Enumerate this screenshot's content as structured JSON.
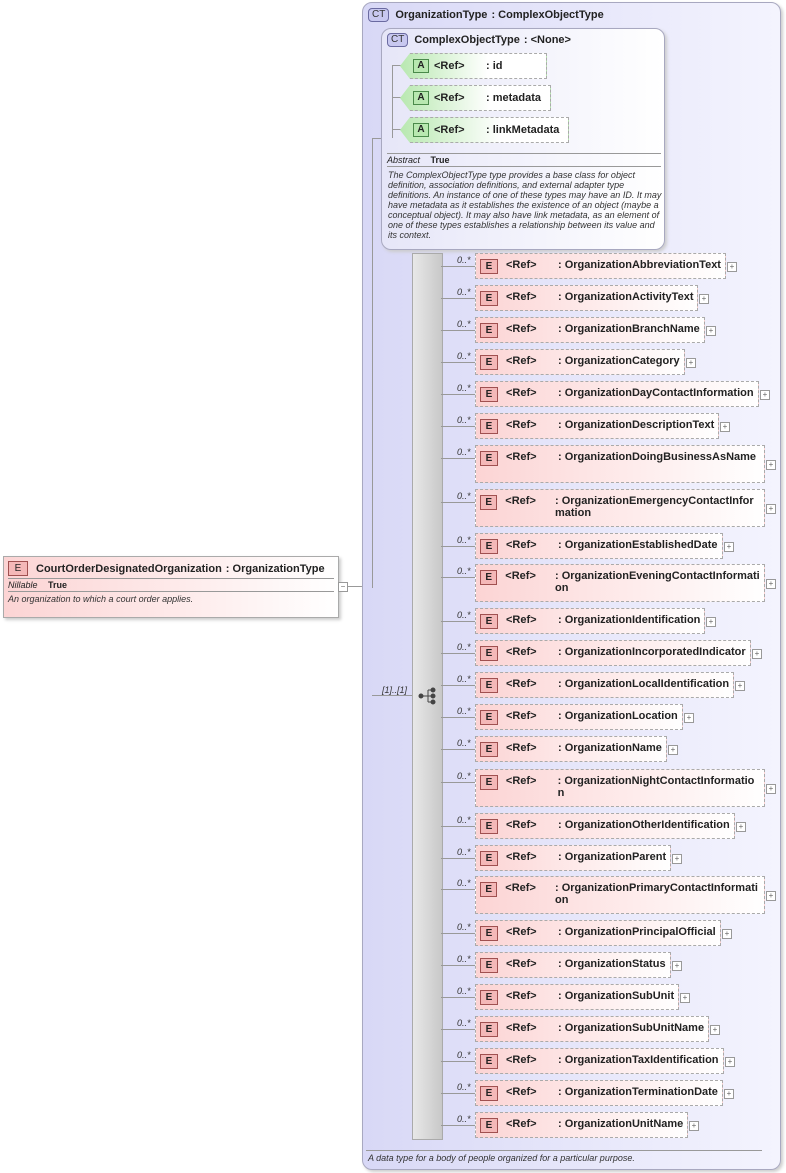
{
  "root": {
    "badge": "E",
    "name": "CourtOrderDesignatedOrganization",
    "type": ": OrganizationType",
    "prop_label": "Nillable",
    "prop_value": "True",
    "doc": "An organization to which a court order applies."
  },
  "org_type": {
    "badge": "CT",
    "name": "OrganizationType",
    "base": ": ComplexObjectType",
    "doc": "A data type for a body of people organized for a particular purpose."
  },
  "cot": {
    "badge": "CT",
    "name": "ComplexObjectType",
    "base": ": <None>",
    "prop_label": "Abstract",
    "prop_value": "True",
    "doc": "The ComplexObjectType type provides a base class for object definition, association definitions, and external adapter type definitions. An instance of one of these types may have an ID. It may have metadata as it establishes the existence of an object (maybe a conceptual object). It may also have link metadata, as an element of one of these types establishes a relationship between its value and its context.",
    "attributes": [
      {
        "badge": "A",
        "ref": "<Ref>",
        "name": ": id"
      },
      {
        "badge": "A",
        "ref": "<Ref>",
        "name": ": metadata"
      },
      {
        "badge": "A",
        "ref": "<Ref>",
        "name": ": linkMetadata"
      }
    ]
  },
  "sequence": {
    "multiplicity": "[1]..[1]"
  },
  "elements": [
    {
      "m": "0..*",
      "badge": "E",
      "ref": "<Ref>",
      "name": ": OrganizationAbbreviationText"
    },
    {
      "m": "0..*",
      "badge": "E",
      "ref": "<Ref>",
      "name": ": OrganizationActivityText"
    },
    {
      "m": "0..*",
      "badge": "E",
      "ref": "<Ref>",
      "name": ": OrganizationBranchName"
    },
    {
      "m": "0..*",
      "badge": "E",
      "ref": "<Ref>",
      "name": ": OrganizationCategory"
    },
    {
      "m": "0..*",
      "badge": "E",
      "ref": "<Ref>",
      "name": ": OrganizationDayContactInformation"
    },
    {
      "m": "0..*",
      "badge": "E",
      "ref": "<Ref>",
      "name": ": OrganizationDescriptionText"
    },
    {
      "m": "0..*",
      "badge": "E",
      "ref": "<Ref>",
      "name": ": OrganizationDoingBusinessAsName"
    },
    {
      "m": "0..*",
      "badge": "E",
      "ref": "<Ref>",
      "name": ": OrganizationEmergencyContactInformation"
    },
    {
      "m": "0..*",
      "badge": "E",
      "ref": "<Ref>",
      "name": ": OrganizationEstablishedDate"
    },
    {
      "m": "0..*",
      "badge": "E",
      "ref": "<Ref>",
      "name": ": OrganizationEveningContactInformation"
    },
    {
      "m": "0..*",
      "badge": "E",
      "ref": "<Ref>",
      "name": ": OrganizationIdentification"
    },
    {
      "m": "0..*",
      "badge": "E",
      "ref": "<Ref>",
      "name": ": OrganizationIncorporatedIndicator"
    },
    {
      "m": "0..*",
      "badge": "E",
      "ref": "<Ref>",
      "name": ": OrganizationLocalIdentification"
    },
    {
      "m": "0..*",
      "badge": "E",
      "ref": "<Ref>",
      "name": ": OrganizationLocation"
    },
    {
      "m": "0..*",
      "badge": "E",
      "ref": "<Ref>",
      "name": ": OrganizationName"
    },
    {
      "m": "0..*",
      "badge": "E",
      "ref": "<Ref>",
      "name": ": OrganizationNightContactInformation"
    },
    {
      "m": "0..*",
      "badge": "E",
      "ref": "<Ref>",
      "name": ": OrganizationOtherIdentification"
    },
    {
      "m": "0..*",
      "badge": "E",
      "ref": "<Ref>",
      "name": ": OrganizationParent"
    },
    {
      "m": "0..*",
      "badge": "E",
      "ref": "<Ref>",
      "name": ": OrganizationPrimaryContactInformation"
    },
    {
      "m": "0..*",
      "badge": "E",
      "ref": "<Ref>",
      "name": ": OrganizationPrincipalOfficial"
    },
    {
      "m": "0..*",
      "badge": "E",
      "ref": "<Ref>",
      "name": ": OrganizationStatus"
    },
    {
      "m": "0..*",
      "badge": "E",
      "ref": "<Ref>",
      "name": ": OrganizationSubUnit"
    },
    {
      "m": "0..*",
      "badge": "E",
      "ref": "<Ref>",
      "name": ": OrganizationSubUnitName"
    },
    {
      "m": "0..*",
      "badge": "E",
      "ref": "<Ref>",
      "name": ": OrganizationTaxIdentification"
    },
    {
      "m": "0..*",
      "badge": "E",
      "ref": "<Ref>",
      "name": ": OrganizationTerminationDate"
    },
    {
      "m": "0..*",
      "badge": "E",
      "ref": "<Ref>",
      "name": ": OrganizationUnitName"
    }
  ]
}
